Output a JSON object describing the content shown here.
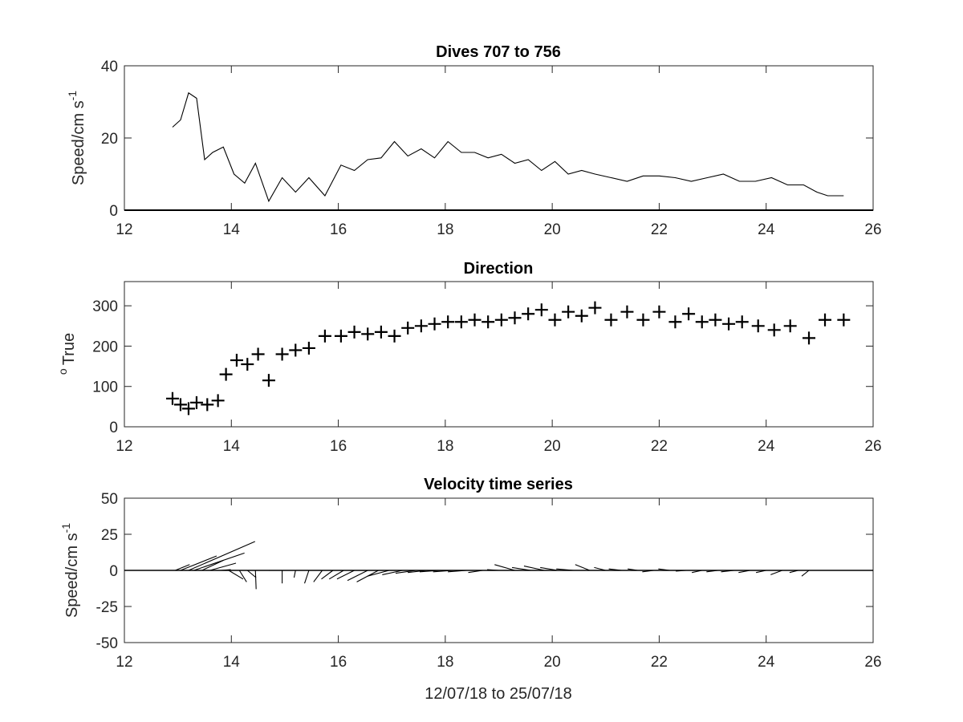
{
  "chart_data": [
    {
      "type": "line",
      "title": "Dives 707 to 756",
      "ylabel": "Speed/cm s",
      "ylabel_sup": "-1",
      "xlim": [
        12,
        26
      ],
      "ylim": [
        0,
        40
      ],
      "xticks": [
        "12",
        "14",
        "16",
        "18",
        "20",
        "22",
        "24",
        "26"
      ],
      "yticks": [
        "0",
        "20",
        "40"
      ],
      "zero_line": true,
      "series": [
        {
          "x": [
            12.9,
            13.05,
            13.2,
            13.35,
            13.5,
            13.65,
            13.85,
            14.05,
            14.25,
            14.45,
            14.7,
            14.95,
            15.2,
            15.45,
            15.75,
            16.05,
            16.3,
            16.55,
            16.8,
            17.05,
            17.3,
            17.55,
            17.8,
            18.05,
            18.3,
            18.55,
            18.8,
            19.05,
            19.3,
            19.55,
            19.8,
            20.05,
            20.3,
            20.55,
            20.8,
            21.1,
            21.4,
            21.7,
            22.0,
            22.3,
            22.6,
            22.9,
            23.2,
            23.5,
            23.8,
            24.1,
            24.4,
            24.7,
            24.95,
            25.15,
            25.45
          ],
          "y": [
            23,
            25,
            32.5,
            31,
            14,
            16,
            17.5,
            10,
            7.5,
            13,
            2.5,
            9,
            5,
            9,
            4,
            12.5,
            11,
            14,
            14.5,
            19,
            15,
            17,
            14.5,
            19,
            16,
            16,
            14.5,
            15.5,
            13,
            14,
            11,
            13.5,
            10,
            11,
            10,
            9,
            8,
            9.5,
            9.5,
            9,
            8,
            9,
            10,
            8,
            8,
            9,
            7,
            7,
            5,
            4,
            4
          ]
        }
      ]
    },
    {
      "type": "scatter",
      "title": "Direction",
      "ylabel": "True",
      "ylabel_sup": "o",
      "xlim": [
        12,
        26
      ],
      "ylim": [
        0,
        360
      ],
      "xticks": [
        "12",
        "14",
        "16",
        "18",
        "20",
        "22",
        "24",
        "26"
      ],
      "yticks": [
        "0",
        "100",
        "200",
        "300"
      ],
      "marker": "+",
      "series": [
        {
          "x": [
            12.9,
            13.05,
            13.2,
            13.35,
            13.55,
            13.75,
            13.9,
            14.1,
            14.3,
            14.5,
            14.7,
            14.95,
            15.2,
            15.45,
            15.75,
            16.05,
            16.3,
            16.55,
            16.8,
            17.05,
            17.3,
            17.55,
            17.8,
            18.05,
            18.3,
            18.55,
            18.8,
            19.05,
            19.3,
            19.55,
            19.8,
            20.05,
            20.3,
            20.55,
            20.8,
            21.1,
            21.4,
            21.7,
            22.0,
            22.3,
            22.55,
            22.8,
            23.05,
            23.3,
            23.55,
            23.85,
            24.15,
            24.45,
            24.8,
            25.1,
            25.45
          ],
          "y": [
            70,
            55,
            45,
            60,
            55,
            65,
            130,
            165,
            155,
            180,
            115,
            180,
            190,
            195,
            225,
            225,
            235,
            230,
            235,
            225,
            245,
            250,
            255,
            260,
            260,
            265,
            260,
            265,
            270,
            280,
            290,
            265,
            285,
            275,
            295,
            265,
            285,
            265,
            285,
            260,
            280,
            260,
            265,
            255,
            260,
            250,
            240,
            250,
            220,
            265,
            265
          ]
        }
      ]
    },
    {
      "type": "quiver",
      "title": "Velocity time series",
      "ylabel": "Speed/cm s",
      "ylabel_sup": "-1",
      "xlabel": "12/07/18 to 25/07/18",
      "xlim": [
        12,
        26
      ],
      "ylim": [
        -50,
        50
      ],
      "xticks": [
        "12",
        "14",
        "16",
        "18",
        "20",
        "22",
        "24",
        "26"
      ],
      "yticks": [
        "-50",
        "-25",
        "0",
        "25",
        "50"
      ],
      "zero_line": true,
      "vectors": [
        {
          "t": 12.95,
          "u": 10,
          "v": 4
        },
        {
          "t": 13.05,
          "u": 25,
          "v": 10
        },
        {
          "t": 13.2,
          "u": 46,
          "v": 20
        },
        {
          "t": 13.3,
          "u": 35,
          "v": 12
        },
        {
          "t": 13.45,
          "u": 15,
          "v": 7
        },
        {
          "t": 13.6,
          "u": 18,
          "v": 5
        },
        {
          "t": 13.8,
          "u": 7,
          "v": 0.5
        },
        {
          "t": 13.95,
          "u": 10,
          "v": -6
        },
        {
          "t": 14.15,
          "u": 5,
          "v": -8
        },
        {
          "t": 14.3,
          "u": 6,
          "v": -5
        },
        {
          "t": 14.45,
          "u": 0.5,
          "v": -13
        },
        {
          "t": 14.7,
          "u": 0.5,
          "v": 0
        },
        {
          "t": 14.95,
          "u": 0,
          "v": -9
        },
        {
          "t": 15.2,
          "u": -1,
          "v": -5
        },
        {
          "t": 15.45,
          "u": -3,
          "v": -9
        },
        {
          "t": 15.7,
          "u": -6,
          "v": -8
        },
        {
          "t": 15.9,
          "u": -8,
          "v": -6
        },
        {
          "t": 16.1,
          "u": -10,
          "v": -6
        },
        {
          "t": 16.3,
          "u": -12,
          "v": -6
        },
        {
          "t": 16.55,
          "u": -14,
          "v": -7
        },
        {
          "t": 16.75,
          "u": -15,
          "v": -8
        },
        {
          "t": 16.95,
          "u": -15,
          "v": -4
        },
        {
          "t": 17.2,
          "u": -14,
          "v": -3
        },
        {
          "t": 17.45,
          "u": -14,
          "v": -2
        },
        {
          "t": 17.65,
          "u": -13,
          "v": -1.5
        },
        {
          "t": 17.9,
          "u": -14,
          "v": -1
        },
        {
          "t": 18.15,
          "u": -14,
          "v": -1
        },
        {
          "t": 18.4,
          "u": -13,
          "v": -1
        },
        {
          "t": 18.7,
          "u": -10,
          "v": -1.5
        },
        {
          "t": 19.0,
          "u": -8,
          "v": 0.5
        },
        {
          "t": 19.3,
          "u": -14,
          "v": 4
        },
        {
          "t": 19.6,
          "u": -13,
          "v": 2
        },
        {
          "t": 19.85,
          "u": -14,
          "v": 3
        },
        {
          "t": 20.1,
          "u": -12,
          "v": 2
        },
        {
          "t": 20.4,
          "u": -12,
          "v": 1
        },
        {
          "t": 20.7,
          "u": -10,
          "v": 4
        },
        {
          "t": 21.0,
          "u": -8,
          "v": 2
        },
        {
          "t": 21.3,
          "u": -9,
          "v": 1
        },
        {
          "t": 21.6,
          "u": -7,
          "v": 1
        },
        {
          "t": 21.9,
          "u": -8,
          "v": -1
        },
        {
          "t": 22.2,
          "u": -8,
          "v": 1
        },
        {
          "t": 22.5,
          "u": -7,
          "v": -0.5
        },
        {
          "t": 22.8,
          "u": -7,
          "v": -1.5
        },
        {
          "t": 23.1,
          "u": -8,
          "v": -1
        },
        {
          "t": 23.4,
          "u": -9,
          "v": -1
        },
        {
          "t": 23.7,
          "u": -8,
          "v": -1.5
        },
        {
          "t": 24.0,
          "u": -7,
          "v": -1.5
        },
        {
          "t": 24.3,
          "u": -8,
          "v": -3
        },
        {
          "t": 24.6,
          "u": -6,
          "v": -1.5
        },
        {
          "t": 24.8,
          "u": -5,
          "v": -4
        }
      ]
    }
  ]
}
